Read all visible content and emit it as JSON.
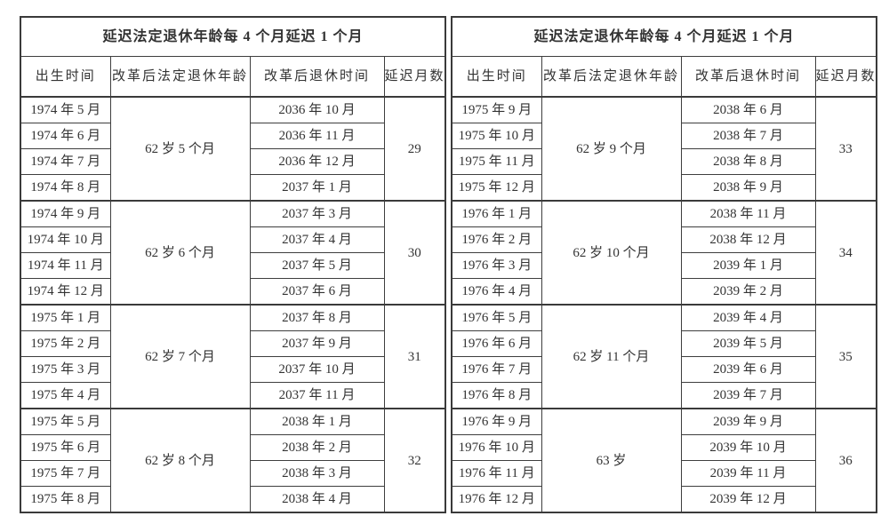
{
  "page": {
    "background": "#ffffff",
    "text_color": "#333333",
    "border_color": "#3a3a3a"
  },
  "tables": [
    {
      "title": "延迟法定退休年龄每 4 个月延迟 1 个月",
      "columns": [
        "出生时间",
        "改革后法定退休年龄",
        "改革后退休时间",
        "延迟月数"
      ],
      "groups": [
        {
          "births": [
            "1974 年 5 月",
            "1974 年 6 月",
            "1974 年 7 月",
            "1974 年 8 月"
          ],
          "age": "62 岁 5 个月",
          "retire": [
            "2036 年 10 月",
            "2036 年 11 月",
            "2036 年 12 月",
            "2037 年 1 月"
          ],
          "delay": "29"
        },
        {
          "births": [
            "1974 年 9 月",
            "1974 年 10 月",
            "1974 年 11 月",
            "1974 年 12 月"
          ],
          "age": "62 岁 6 个月",
          "retire": [
            "2037 年 3 月",
            "2037 年 4 月",
            "2037 年 5 月",
            "2037 年 6 月"
          ],
          "delay": "30"
        },
        {
          "births": [
            "1975 年 1 月",
            "1975 年 2 月",
            "1975 年 3 月",
            "1975 年 4 月"
          ],
          "age": "62 岁 7 个月",
          "retire": [
            "2037 年 8 月",
            "2037 年 9 月",
            "2037 年 10 月",
            "2037 年 11 月"
          ],
          "delay": "31"
        },
        {
          "births": [
            "1975 年 5 月",
            "1975 年 6 月",
            "1975 年 7 月",
            "1975 年 8 月"
          ],
          "age": "62 岁 8 个月",
          "retire": [
            "2038 年 1 月",
            "2038 年 2 月",
            "2038 年 3 月",
            "2038 年 4 月"
          ],
          "delay": "32"
        }
      ]
    },
    {
      "title": "延迟法定退休年龄每 4 个月延迟 1 个月",
      "columns": [
        "出生时间",
        "改革后法定退休年龄",
        "改革后退休时间",
        "延迟月数"
      ],
      "groups": [
        {
          "births": [
            "1975 年 9 月",
            "1975 年 10 月",
            "1975 年 11 月",
            "1975 年 12 月"
          ],
          "age": "62 岁 9 个月",
          "retire": [
            "2038 年 6 月",
            "2038 年 7 月",
            "2038 年 8 月",
            "2038 年 9 月"
          ],
          "delay": "33"
        },
        {
          "births": [
            "1976 年 1 月",
            "1976 年 2 月",
            "1976 年 3 月",
            "1976 年 4 月"
          ],
          "age": "62 岁 10 个月",
          "retire": [
            "2038 年 11 月",
            "2038 年 12 月",
            "2039 年 1 月",
            "2039 年 2 月"
          ],
          "delay": "34"
        },
        {
          "births": [
            "1976 年 5 月",
            "1976 年 6 月",
            "1976 年 7 月",
            "1976 年 8 月"
          ],
          "age": "62 岁 11 个月",
          "retire": [
            "2039 年 4 月",
            "2039 年 5 月",
            "2039 年 6 月",
            "2039 年 7 月"
          ],
          "delay": "35"
        },
        {
          "births": [
            "1976 年 9 月",
            "1976 年 10 月",
            "1976 年 11 月",
            "1976 年 12 月"
          ],
          "age": "63 岁",
          "retire": [
            "2039 年 9 月",
            "2039 年 10 月",
            "2039 年 11 月",
            "2039 年 12 月"
          ],
          "delay": "36"
        }
      ]
    }
  ]
}
